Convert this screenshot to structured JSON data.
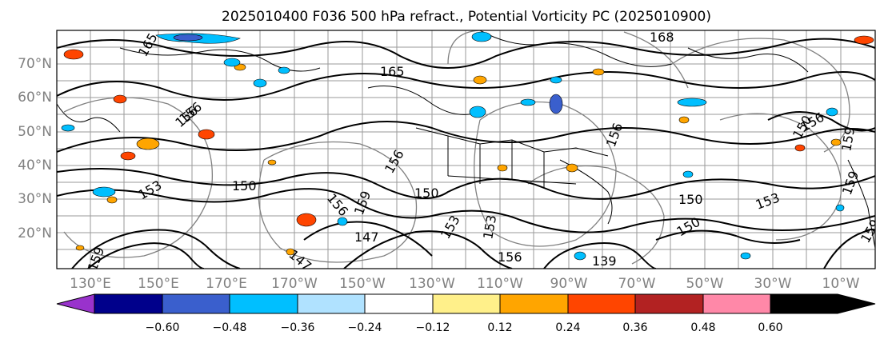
{
  "title": "2025010400 F036 500 hPa refract., Potential Vorticity PC (2025010900)",
  "lat_labels": [
    "70°N",
    "60°N",
    "50°N",
    "40°N",
    "30°N",
    "20°N"
  ],
  "lon_labels": [
    "130°E",
    "150°E",
    "170°E",
    "170°W",
    "150°W",
    "130°W",
    "110°W",
    "90°W",
    "70°W",
    "50°W",
    "30°W",
    "10°W"
  ],
  "colorbar": {
    "ticks": [
      "−0.60",
      "−0.48",
      "−0.36",
      "−0.24",
      "−0.12",
      "0.12",
      "0.24",
      "0.36",
      "0.48",
      "0.60"
    ],
    "colors": [
      "#9932cc",
      "#00008b",
      "#3a5fcd",
      "#00bfff",
      "#b0e2ff",
      "#ffffff",
      "#fff08a",
      "#ffa500",
      "#ff4500",
      "#b22222",
      "#ff88a8"
    ]
  },
  "contour_labels": [
    "165",
    "168",
    "150",
    "150",
    "150",
    "150",
    "156",
    "156",
    "159",
    "153",
    "153",
    "147",
    "147",
    "156",
    "159",
    "156",
    "159",
    "153",
    "150",
    "153",
    "156",
    "159",
    "156",
    "156",
    "159",
    "139",
    "165"
  ]
}
